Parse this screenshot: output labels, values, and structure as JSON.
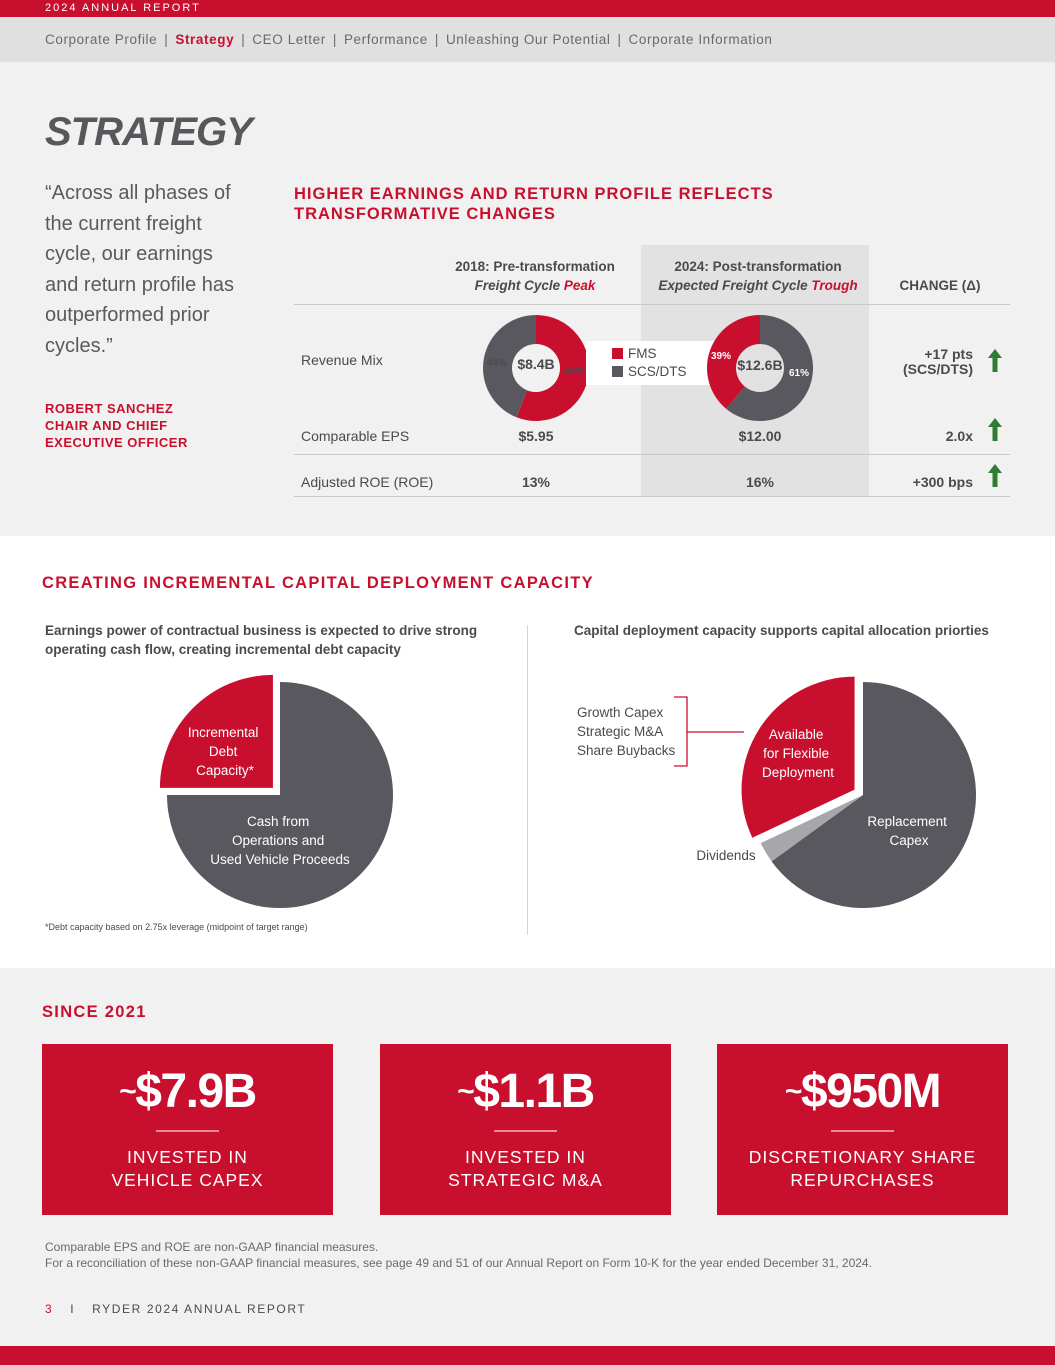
{
  "header": {
    "report_label": "2024 ANNUAL REPORT"
  },
  "nav": {
    "items": [
      "Corporate Profile",
      "Strategy",
      "CEO Letter",
      "Performance",
      "Unleashing Our Potential",
      "Corporate Information"
    ],
    "separator": "|"
  },
  "page_title": "STRATEGY",
  "quote": {
    "text": "“Across all phases of the current freight cycle, our earnings and return profile has outperformed prior cycles.”",
    "attribution": [
      "ROBERT SANCHEZ",
      "CHAIR AND CHIEF",
      "EXECUTIVE OFFICER"
    ]
  },
  "table": {
    "title_lines": [
      "HIGHER EARNINGS AND RETURN PROFILE REFLECTS",
      "TRANSFORMATIVE CHANGES"
    ],
    "col_2018": {
      "line1": "2018: Pre-transformation",
      "line2_prefix": "Freight Cycle ",
      "line2_emph": "Peak"
    },
    "col_2024": {
      "line1": "2024: Post-transformation",
      "line2_prefix": "Expected Freight Cycle ",
      "line2_emph": "Trough"
    },
    "col_change": "CHANGE (Δ)",
    "rows": [
      {
        "label": "Revenue Mix",
        "change_line1": "+17 pts",
        "change_line2": "(SCS/DTS)"
      },
      {
        "label": "Comparable EPS",
        "v2018": "$5.95",
        "v2024": "$12.00",
        "change": "2.0x"
      },
      {
        "label": "Adjusted ROE (ROE)",
        "v2018": "13%",
        "v2024": "16%",
        "change": "+300 bps"
      }
    ]
  },
  "chart_data": [
    {
      "type": "pie",
      "categories": [
        "FMS",
        "SCS/DTS"
      ],
      "values": [
        56,
        44
      ],
      "center_label": "$8.4B",
      "value_labels": [
        "56%",
        "44%"
      ],
      "colors": [
        "#c8102e",
        "#58585e"
      ]
    },
    {
      "type": "pie",
      "categories": [
        "FMS",
        "SCS/DTS"
      ],
      "values": [
        39,
        61
      ],
      "center_label": "$12.6B",
      "value_labels": [
        "39%",
        "61%"
      ],
      "colors": [
        "#c8102e",
        "#58585e"
      ]
    },
    {
      "type": "pie",
      "categories": [
        "Incremental Debt Capacity*",
        "Cash from Operations and Used Vehicle Proceeds"
      ],
      "values": [
        25,
        75
      ]
    },
    {
      "type": "pie",
      "categories": [
        "Available for Flexible Deployment",
        "Dividends",
        "Replacement Capex"
      ],
      "values": [
        32,
        3,
        65
      ]
    }
  ],
  "legend": {
    "fms": "FMS",
    "scs": "SCS/DTS",
    "fms_color": "#c8102e",
    "scs_color": "#58585e"
  },
  "capital": {
    "title": "CREATING INCREMENTAL CAPITAL DEPLOYMENT CAPACITY",
    "left_sub_lines": [
      "Earnings power of contractual business is expected to drive strong",
      "operating cash flow, creating incremental debt capacity"
    ],
    "left_labels": {
      "debt": [
        "Incremental",
        "Debt",
        "Capacity*"
      ],
      "cash": [
        "Cash from",
        "Operations and",
        "Used Vehicle Proceeds"
      ]
    },
    "footnote": "*Debt capacity based on 2.75x leverage (midpoint of target range)",
    "right_sub": "Capital deployment capacity supports capital allocation priorties",
    "right_labels": {
      "available": [
        "Available",
        "for Flexible",
        "Deployment"
      ],
      "replacement": [
        "Replacement",
        "Capex"
      ],
      "dividends": "Dividends",
      "uses": [
        "Growth Capex",
        "Strategic M&A",
        "Share Buybacks"
      ]
    }
  },
  "since": {
    "title": "SINCE 2021",
    "stats": [
      {
        "tilde": "~",
        "value": "$7.9B",
        "lines": [
          "INVESTED IN",
          "VEHICLE CAPEX"
        ]
      },
      {
        "tilde": "~",
        "value": "$1.1B",
        "lines": [
          "INVESTED IN",
          "STRATEGIC M&A"
        ]
      },
      {
        "tilde": "~",
        "value": "$950M",
        "lines": [
          "DISCRETIONARY SHARE",
          "REPURCHASES"
        ]
      }
    ]
  },
  "disclaimer": [
    "Comparable EPS and ROE are non-GAAP financial measures.",
    "For a reconciliation of these non-GAAP financial measures, see page 49 and 51 of our Annual Report on Form 10-K for the year ended December 31, 2024."
  ],
  "footer": {
    "page_number": "3",
    "separator": "I",
    "text": "RYDER 2024 ANNUAL REPORT"
  },
  "colors": {
    "brand_red": "#c8102e",
    "dark_gray": "#58585e",
    "up_arrow": "#2e7d32"
  }
}
